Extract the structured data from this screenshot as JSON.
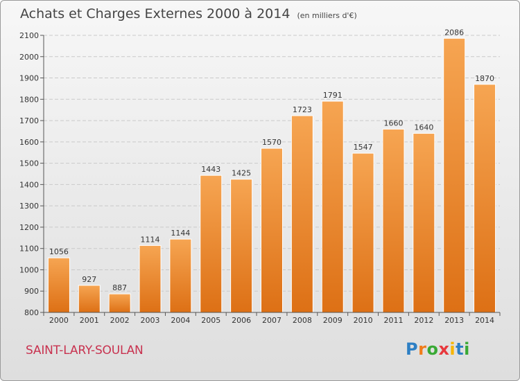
{
  "commune": "SAINT-LARY-SOULAN",
  "logo": {
    "letters": [
      "P",
      "r",
      "o",
      "x",
      "i",
      "t",
      "i"
    ],
    "colors": [
      "#2d7fc4",
      "#f07c1a",
      "#39a935",
      "#e8383d",
      "#f7b500",
      "#2d7fc4",
      "#39a935"
    ]
  },
  "colors": {
    "bar_light": "#f6a552",
    "bar_dark": "#dd7015",
    "grid": "#c9c9c9"
  },
  "chart_data": {
    "type": "bar",
    "title": "Achats et Charges Externes 2000 à 2014",
    "unit": "(en milliers d'€)",
    "categories": [
      "2000",
      "2001",
      "2002",
      "2003",
      "2004",
      "2005",
      "2006",
      "2007",
      "2008",
      "2009",
      "2010",
      "2011",
      "2012",
      "2013",
      "2014"
    ],
    "values": [
      1056,
      927,
      887,
      1114,
      1144,
      1443,
      1425,
      1570,
      1723,
      1791,
      1547,
      1660,
      1640,
      2086,
      1870
    ],
    "ylim": [
      800,
      2100
    ],
    "yticks": [
      800,
      900,
      1000,
      1100,
      1200,
      1300,
      1400,
      1500,
      1600,
      1700,
      1800,
      1900,
      2000,
      2100
    ],
    "grid": true
  }
}
